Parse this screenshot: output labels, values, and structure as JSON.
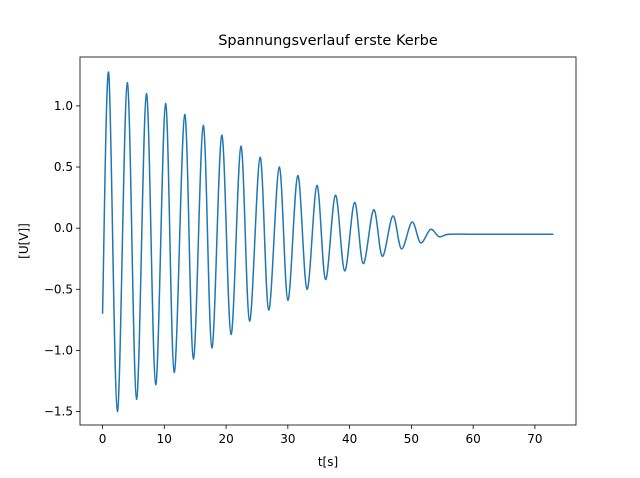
{
  "chart_data": {
    "type": "line",
    "title": "Spannungsverlauf erste Kerbe",
    "x_label": "t[s]",
    "y_label": "[U[V]]",
    "x": [
      0,
      1.0,
      2.4,
      4.0,
      5.5,
      7.1,
      8.6,
      10.2,
      11.6,
      13.3,
      14.7,
      16.3,
      17.7,
      19.3,
      20.8,
      22.4,
      23.8,
      25.5,
      26.9,
      28.6,
      30.0,
      31.6,
      33.1,
      34.7,
      36.1,
      37.7,
      39.2,
      40.8,
      42.2,
      43.9,
      45.3,
      47.0,
      48.4,
      50.1,
      51.5,
      53.1,
      54.5,
      56,
      60,
      65,
      70,
      73
    ],
    "series": [
      {
        "color": "#1f77b4",
        "values": [
          -0.7,
          1.27,
          -1.5,
          1.19,
          -1.4,
          1.1,
          -1.28,
          1.02,
          -1.18,
          0.93,
          -1.07,
          0.84,
          -0.98,
          0.76,
          -0.87,
          0.67,
          -0.76,
          0.58,
          -0.67,
          0.5,
          -0.59,
          0.43,
          -0.5,
          0.35,
          -0.42,
          0.27,
          -0.35,
          0.21,
          -0.29,
          0.15,
          -0.23,
          0.1,
          -0.17,
          0.05,
          -0.12,
          -0.01,
          -0.07,
          -0.05,
          -0.05,
          -0.05,
          -0.05,
          -0.05
        ]
      }
    ],
    "xlim": [
      -3.65,
      76.65
    ],
    "ylim": [
      -1.61,
      1.4
    ],
    "xticks": [
      0,
      10,
      20,
      30,
      40,
      50,
      60,
      70
    ],
    "yticks": [
      {
        "value": -1.5,
        "label": "−1.5"
      },
      {
        "value": -1.0,
        "label": "−1.0"
      },
      {
        "value": -0.5,
        "label": "−0.5"
      },
      {
        "value": 0,
        "label": "0.0"
      },
      {
        "value": 0.5,
        "label": "0.5"
      },
      {
        "value": 1.0,
        "label": "1.0"
      }
    ]
  }
}
